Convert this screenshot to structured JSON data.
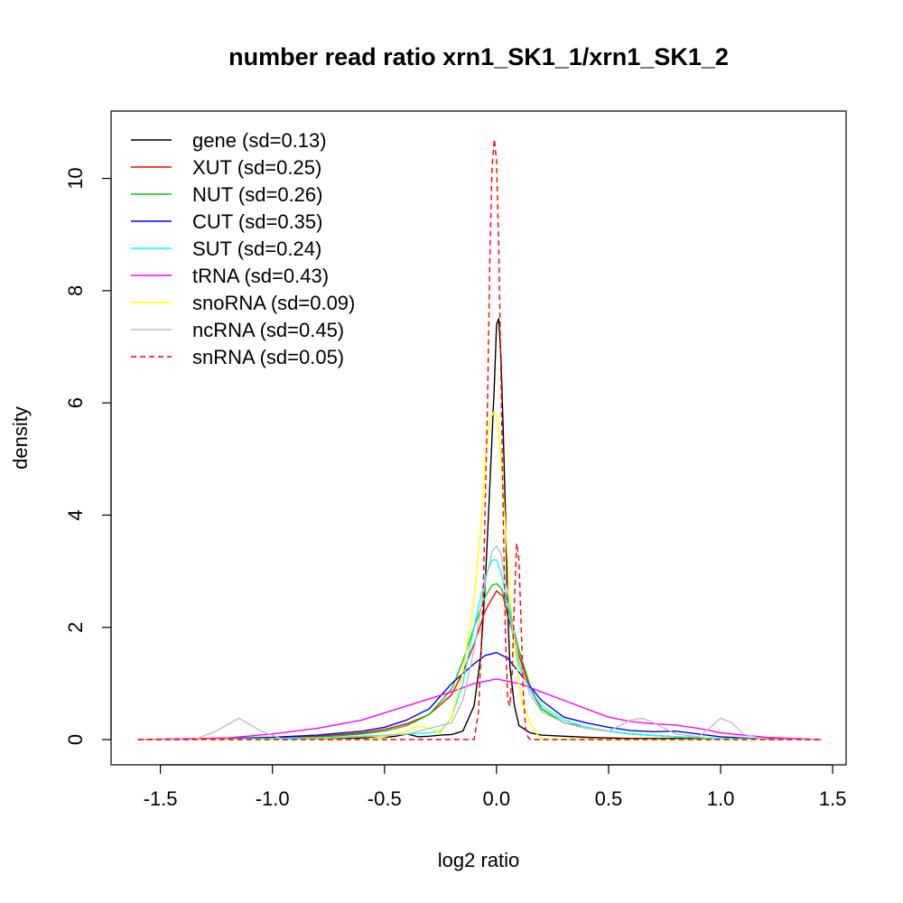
{
  "chart_data": {
    "type": "line",
    "title": "number read ratio xrn1_SK1_1/xrn1_SK1_2",
    "xlabel": "log2 ratio",
    "ylabel": "density",
    "xlim": [
      -1.72,
      1.56
    ],
    "ylim": [
      -0.45,
      11.2
    ],
    "xticks": [
      -1.5,
      -1.0,
      -0.5,
      0.0,
      0.5,
      1.0,
      1.5
    ],
    "xtick_labels": [
      "-1.5",
      "-1.0",
      "-0.5",
      "0.0",
      "0.5",
      "1.0",
      "1.5"
    ],
    "yticks": [
      0,
      2,
      4,
      6,
      8,
      10
    ],
    "ytick_labels": [
      "0",
      "2",
      "4",
      "6",
      "8",
      "10"
    ],
    "grid": false,
    "legend_position": "top-left",
    "series": [
      {
        "name": "gene (sd=0.13)",
        "color": "#000000",
        "dash": "solid",
        "x": [
          -1.6,
          -1.2,
          -0.8,
          -0.6,
          -0.5,
          -0.45,
          -0.4,
          -0.35,
          -0.3,
          -0.25,
          -0.2,
          -0.15,
          -0.1,
          -0.07,
          -0.05,
          -0.03,
          -0.01,
          0.0,
          0.01,
          0.02,
          0.03,
          0.04,
          0.05,
          0.06,
          0.08,
          0.1,
          0.15,
          0.2,
          0.3,
          0.4,
          0.5,
          0.6,
          0.8,
          1.0,
          1.2,
          1.45
        ],
        "y": [
          0,
          0.01,
          0.02,
          0.03,
          0.04,
          0.06,
          0.1,
          0.05,
          0.06,
          0.08,
          0.09,
          0.15,
          0.6,
          1.5,
          2.8,
          4.5,
          6.3,
          7.4,
          7.5,
          6.8,
          5.5,
          4.0,
          2.3,
          1.3,
          0.6,
          0.25,
          0.12,
          0.08,
          0.06,
          0.04,
          0.03,
          0.02,
          0.02,
          0.01,
          0.01,
          0
        ]
      },
      {
        "name": "XUT (sd=0.25)",
        "color": "#ff0000",
        "dash": "solid",
        "x": [
          -1.6,
          -1.2,
          -1.0,
          -0.8,
          -0.6,
          -0.5,
          -0.4,
          -0.3,
          -0.2,
          -0.15,
          -0.1,
          -0.05,
          0.0,
          0.03,
          0.05,
          0.08,
          0.1,
          0.15,
          0.2,
          0.3,
          0.4,
          0.5,
          0.6,
          0.8,
          1.0,
          1.2,
          1.45
        ],
        "y": [
          0,
          0.01,
          0.03,
          0.06,
          0.12,
          0.18,
          0.28,
          0.45,
          0.8,
          1.2,
          1.7,
          2.3,
          2.65,
          2.55,
          2.2,
          1.8,
          1.5,
          0.9,
          0.55,
          0.3,
          0.22,
          0.15,
          0.1,
          0.05,
          0.02,
          0.01,
          0
        ]
      },
      {
        "name": "NUT (sd=0.26)",
        "color": "#00cc00",
        "dash": "solid",
        "x": [
          -1.6,
          -1.2,
          -1.0,
          -0.8,
          -0.6,
          -0.5,
          -0.4,
          -0.3,
          -0.2,
          -0.15,
          -0.1,
          -0.05,
          -0.02,
          0.0,
          0.02,
          0.05,
          0.1,
          0.15,
          0.2,
          0.3,
          0.4,
          0.5,
          0.6,
          0.8,
          1.0,
          1.2,
          1.45
        ],
        "y": [
          0,
          0.01,
          0.02,
          0.04,
          0.1,
          0.15,
          0.25,
          0.45,
          0.9,
          1.4,
          2.0,
          2.55,
          2.75,
          2.78,
          2.7,
          2.4,
          1.6,
          0.95,
          0.55,
          0.3,
          0.2,
          0.15,
          0.1,
          0.05,
          0.02,
          0.01,
          0
        ]
      },
      {
        "name": "CUT (sd=0.35)",
        "color": "#0000ff",
        "dash": "solid",
        "x": [
          -1.6,
          -1.2,
          -1.0,
          -0.8,
          -0.6,
          -0.5,
          -0.4,
          -0.3,
          -0.2,
          -0.1,
          -0.05,
          0.0,
          0.05,
          0.1,
          0.2,
          0.3,
          0.4,
          0.5,
          0.6,
          0.7,
          0.8,
          0.9,
          1.0,
          1.2,
          1.45
        ],
        "y": [
          0,
          0.02,
          0.04,
          0.08,
          0.15,
          0.22,
          0.35,
          0.55,
          1.0,
          1.35,
          1.5,
          1.55,
          1.45,
          1.2,
          0.7,
          0.4,
          0.3,
          0.22,
          0.16,
          0.14,
          0.15,
          0.1,
          0.05,
          0.01,
          0
        ]
      },
      {
        "name": "SUT (sd=0.24)",
        "color": "#00ffff",
        "dash": "solid",
        "x": [
          -1.6,
          -1.2,
          -1.0,
          -0.8,
          -0.6,
          -0.5,
          -0.4,
          -0.3,
          -0.25,
          -0.2,
          -0.15,
          -0.1,
          -0.05,
          -0.02,
          0.0,
          0.02,
          0.05,
          0.08,
          0.1,
          0.15,
          0.2,
          0.3,
          0.4,
          0.5,
          0.6,
          0.8,
          1.0,
          1.2,
          1.45
        ],
        "y": [
          0,
          0.01,
          0.02,
          0.03,
          0.06,
          0.08,
          0.1,
          0.12,
          0.15,
          0.4,
          1.0,
          2.0,
          2.9,
          3.2,
          3.2,
          3.0,
          2.4,
          1.7,
          1.3,
          0.9,
          0.6,
          0.35,
          0.22,
          0.15,
          0.1,
          0.05,
          0.02,
          0.01,
          0
        ]
      },
      {
        "name": "tRNA (sd=0.43)",
        "color": "#ff00ff",
        "dash": "solid",
        "x": [
          -1.6,
          -1.2,
          -1.0,
          -0.8,
          -0.6,
          -0.4,
          -0.2,
          -0.1,
          0.0,
          0.1,
          0.2,
          0.3,
          0.4,
          0.5,
          0.6,
          0.7,
          0.8,
          0.9,
          1.0,
          1.2,
          1.45
        ],
        "y": [
          0,
          0.03,
          0.1,
          0.2,
          0.35,
          0.6,
          0.85,
          1.0,
          1.08,
          1.0,
          0.85,
          0.7,
          0.55,
          0.4,
          0.32,
          0.28,
          0.26,
          0.2,
          0.12,
          0.04,
          0
        ]
      },
      {
        "name": "snoRNA (sd=0.09)",
        "color": "#ffff00",
        "dash": "solid",
        "x": [
          -1.6,
          -1.0,
          -0.6,
          -0.5,
          -0.45,
          -0.4,
          -0.35,
          -0.3,
          -0.25,
          -0.2,
          -0.15,
          -0.1,
          -0.07,
          -0.05,
          -0.03,
          -0.01,
          0.0,
          0.02,
          0.04,
          0.06,
          0.08,
          0.1,
          0.12,
          0.15,
          0.18,
          0.2,
          0.25,
          0.3,
          0.4,
          0.5,
          0.6,
          0.8,
          1.0,
          1.2,
          1.45
        ],
        "y": [
          0,
          0,
          0,
          0.05,
          0.1,
          0.15,
          0.25,
          0.2,
          0.12,
          0.4,
          1.2,
          2.5,
          3.8,
          5.0,
          5.7,
          5.85,
          5.8,
          5.0,
          3.8,
          2.6,
          1.7,
          1.0,
          0.6,
          0.3,
          0.1,
          0.02,
          0,
          0,
          0,
          0,
          0,
          0,
          0,
          0,
          0
        ]
      },
      {
        "name": "ncRNA (sd=0.45)",
        "color": "#bebebe",
        "dash": "solid",
        "x": [
          -1.6,
          -1.35,
          -1.25,
          -1.15,
          -1.05,
          -0.95,
          -0.8,
          -0.6,
          -0.4,
          -0.2,
          -0.15,
          -0.1,
          -0.05,
          -0.02,
          0.0,
          0.02,
          0.05,
          0.1,
          0.15,
          0.2,
          0.3,
          0.4,
          0.5,
          0.55,
          0.6,
          0.65,
          0.7,
          0.8,
          0.9,
          0.95,
          1.0,
          1.05,
          1.1,
          1.2,
          1.45
        ],
        "y": [
          0,
          0.0,
          0.15,
          0.38,
          0.15,
          0.0,
          0.02,
          0.05,
          0.1,
          0.3,
          0.7,
          1.6,
          2.8,
          3.35,
          3.45,
          3.3,
          2.6,
          1.4,
          0.8,
          0.5,
          0.3,
          0.2,
          0.15,
          0.25,
          0.35,
          0.38,
          0.3,
          0.1,
          0.05,
          0.2,
          0.38,
          0.3,
          0.1,
          0.0,
          0
        ]
      },
      {
        "name": "snRNA (sd=0.05)",
        "color": "#ff0000",
        "dash": "dashed",
        "x": [
          -1.6,
          -0.2,
          -0.1,
          -0.08,
          -0.06,
          -0.04,
          -0.03,
          -0.02,
          -0.01,
          0.0,
          0.01,
          0.02,
          0.03,
          0.04,
          0.05,
          0.06,
          0.07,
          0.08,
          0.09,
          0.1,
          0.11,
          0.12,
          0.13,
          0.14,
          0.15,
          0.2,
          1.45
        ],
        "y": [
          0,
          0,
          0,
          0.5,
          2.5,
          6.0,
          8.5,
          10.2,
          10.7,
          10.3,
          8.8,
          6.5,
          4.0,
          1.8,
          0.7,
          0.6,
          1.2,
          2.5,
          3.5,
          3.2,
          2.0,
          0.8,
          0.2,
          0.05,
          0,
          0,
          0
        ]
      }
    ]
  }
}
